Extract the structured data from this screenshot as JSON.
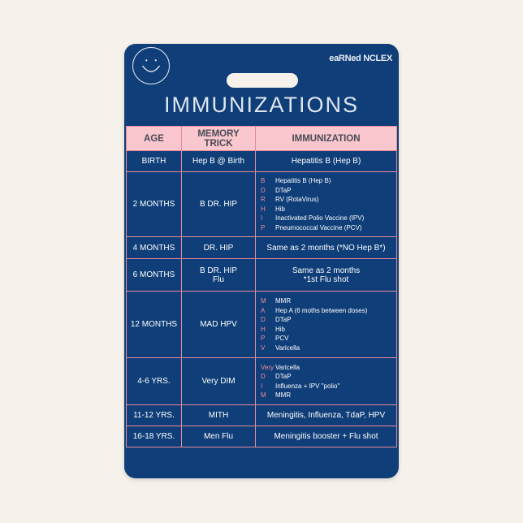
{
  "brand": "eaRNed NCLEX",
  "title": "IMMUNIZATIONS",
  "headers": {
    "age": "AGE",
    "trick": "MEMORY TRICK",
    "imm": "IMMUNIZATION"
  },
  "rows": [
    {
      "age": "BIRTH",
      "trick": "Hep B @ Birth",
      "imm": "Hepatitis B (Hep B)"
    },
    {
      "age": "2 MONTHS",
      "trick": "B DR. HIP",
      "list": [
        [
          "B",
          "Hepatitis B (Hep B)"
        ],
        [
          "D",
          "DTaP"
        ],
        [
          "R",
          "RV (RotaVirus)"
        ],
        [
          "H",
          "Hib"
        ],
        [
          "I",
          "Inactivated Polio Vaccine (IPV)"
        ],
        [
          "P",
          "Pneumococcal Vaccine (PCV)"
        ]
      ]
    },
    {
      "age": "4 MONTHS",
      "trick": "DR. HIP",
      "imm": "Same as 2 months (*NO Hep B*)"
    },
    {
      "age": "6 MONTHS",
      "trick": "B DR. HIP",
      "trick2": "Flu",
      "imm": "Same as 2 months",
      "imm2": "*1st Flu shot"
    },
    {
      "age": "12 MONTHS",
      "trick": "MAD HPV",
      "list": [
        [
          "M",
          "MMR"
        ],
        [
          "A",
          "Hep A (6 moths between doses)"
        ],
        [
          "D",
          "DTaP"
        ],
        [
          "H",
          "Hib"
        ],
        [
          "P",
          "PCV"
        ],
        [
          "V",
          "Varicella"
        ]
      ]
    },
    {
      "age": "4-6 YRS.",
      "trick": "Very DIM",
      "list": [
        [
          "Very",
          "Varicella"
        ],
        [
          "D",
          "DTaP"
        ],
        [
          "I",
          "Influenza + IPV  \"polio\""
        ],
        [
          "M",
          "MMR"
        ]
      ]
    },
    {
      "age": "11-12 YRS.",
      "trick": "MITH",
      "imm": "Meningitis, Influenza, TdaP, HPV"
    },
    {
      "age": "16-18 YRS.",
      "trick": "Men Flu",
      "imm": "Meningitis booster +  Flu shot"
    }
  ],
  "colors": {
    "card": "#0f3e78",
    "header": "#f9c7cd",
    "border": "#e88a9a",
    "letter": "#f08a9c"
  }
}
